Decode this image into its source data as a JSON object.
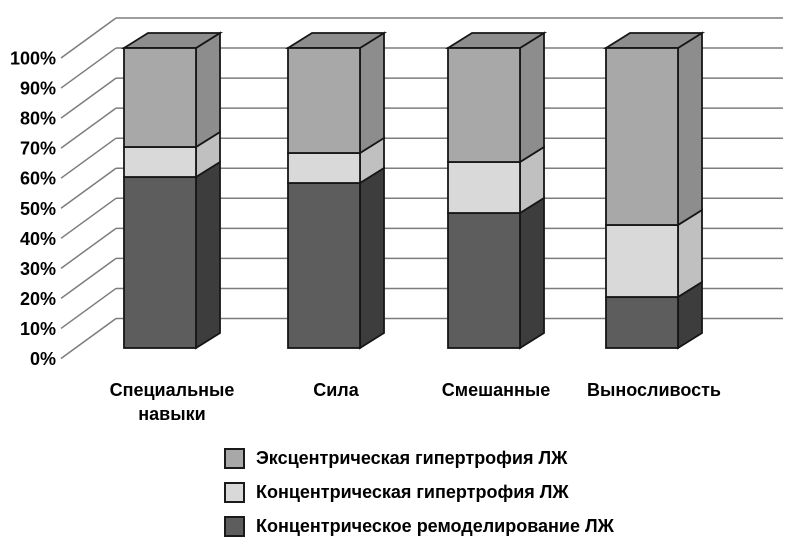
{
  "figure": {
    "background": "#ffffff"
  },
  "chart_data": {
    "type": "bar",
    "subtype": "stacked-percent-3d",
    "title": "",
    "categories": [
      "Специальные навыки",
      "Сила",
      "Смешанные",
      "Выносливость"
    ],
    "category_lines": [
      [
        "Специальные",
        "навыки"
      ],
      [
        "Сила"
      ],
      [
        "Смешанные"
      ],
      [
        "Выносливость"
      ]
    ],
    "series": [
      {
        "name": "Концентрическое ремоделирование ЛЖ",
        "values": [
          57,
          55,
          45,
          17
        ],
        "front_color": "#5d5d5d",
        "side_color": "#3d3d3d",
        "top_color": "#4a4a4a"
      },
      {
        "name": "Концентрическая гипертрофия ЛЖ",
        "values": [
          10,
          10,
          17,
          24
        ],
        "front_color": "#d9d9d9",
        "side_color": "#c0c0c0",
        "top_color": "#cccccc"
      },
      {
        "name": "Эксцентрическая гипертрофия ЛЖ",
        "values": [
          33,
          35,
          38,
          59
        ],
        "front_color": "#a8a8a8",
        "side_color": "#8d8d8d",
        "top_color": "#8d8d8d"
      }
    ],
    "legend": [
      {
        "label": "Эксцентрическая гипертрофия ЛЖ",
        "color": "#a8a8a8"
      },
      {
        "label": "Концентрическая гипертрофия ЛЖ",
        "color": "#d9d9d9"
      },
      {
        "label": "Концентрическое ремоделирование ЛЖ",
        "color": "#5d5d5d"
      }
    ],
    "legend_position": "bottom",
    "yticks": [
      "0%",
      "10%",
      "20%",
      "30%",
      "40%",
      "50%",
      "60%",
      "70%",
      "80%",
      "90%",
      "100%"
    ],
    "ylim": [
      0,
      100
    ],
    "grid": true,
    "colors": {
      "gridline": "#7d7d7d",
      "outline": "#161616",
      "text": "#000000"
    }
  }
}
